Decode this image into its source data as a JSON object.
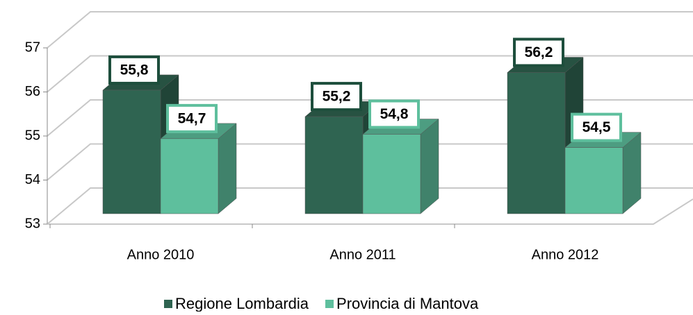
{
  "chart_data": {
    "type": "bar3d",
    "categories": [
      "Anno 2010",
      "Anno 2011",
      "Anno 2012"
    ],
    "series": [
      {
        "name": "Regione Lombardia",
        "color": "#2f6451",
        "values": [
          55.8,
          55.2,
          56.2
        ],
        "value_labels": [
          "55,8",
          "55,2",
          "56,2"
        ]
      },
      {
        "name": "Provincia di Mantova",
        "color": "#5ebf9d",
        "values": [
          54.7,
          54.8,
          54.5
        ],
        "value_labels": [
          "54,7",
          "54,8",
          "54,5"
        ]
      }
    ],
    "ylim": [
      53,
      57
    ],
    "yticks": [
      53,
      54,
      55,
      56,
      57
    ],
    "grid": true,
    "legend": "bottom"
  }
}
